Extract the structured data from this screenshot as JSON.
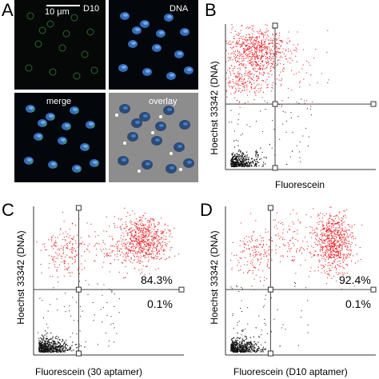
{
  "figure": {
    "panels": {
      "A": {
        "letter": "A",
        "scale_bar": "10 μm",
        "images": [
          {
            "label": "D10"
          },
          {
            "label": "DNA"
          },
          {
            "label": "merge"
          },
          {
            "label": "overlay"
          }
        ]
      },
      "B": {
        "letter": "B",
        "ylabel": "Hoechst 33342 (DNA)",
        "xlabel": "Fluorescein"
      },
      "C": {
        "letter": "C",
        "ylabel": "Hoechst 33342 (DNA)",
        "xlabel": "Fluorescein (30 aptamer)",
        "upper_right_pct": "84.3%",
        "lower_right_pct": "0.1%"
      },
      "D": {
        "letter": "D",
        "ylabel": "Hoechst 33342 (DNA)",
        "xlabel": "Fluorescein (D10 aptamer)",
        "upper_right_pct": "92.4%",
        "lower_right_pct": "0.1%"
      }
    }
  },
  "chart_data": [
    {
      "type": "scatter",
      "panel": "B",
      "quadrant_percentages": []
    },
    {
      "type": "scatter",
      "panel": "C",
      "quadrant_percentages": {
        "upper_right": 84.3,
        "lower_right": 0.1
      }
    },
    {
      "type": "scatter",
      "panel": "D",
      "quadrant_percentages": {
        "upper_right": 92.4,
        "lower_right": 0.1
      }
    }
  ],
  "colors": {
    "positive_events": "#e8262c",
    "negative_events": "#111111",
    "dna_stain": "#3d7fd6",
    "fitc_stain": "#3fa84a"
  }
}
